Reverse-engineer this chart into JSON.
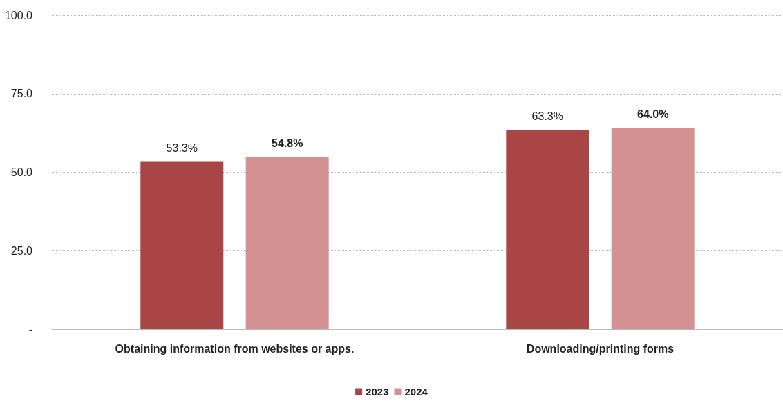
{
  "chart_data": {
    "type": "bar",
    "categories": [
      "Obtaining information from websites or apps.",
      "Downloading/printing forms"
    ],
    "series": [
      {
        "name": "2023",
        "color": "#a84646",
        "values": [
          53.3,
          63.3
        ],
        "value_labels": [
          "53.3%",
          "63.3%"
        ]
      },
      {
        "name": "2024",
        "color": "#d39191",
        "values": [
          54.8,
          64.0
        ],
        "value_labels": [
          "54.8%",
          "64.0%"
        ]
      }
    ],
    "ylim": [
      0,
      100
    ],
    "yticks": [
      {
        "value": 0,
        "label": "-"
      },
      {
        "value": 25,
        "label": "25.0"
      },
      {
        "value": 50,
        "label": "50.0"
      },
      {
        "value": 75,
        "label": "75.0"
      },
      {
        "value": 100,
        "label": "100.0"
      }
    ],
    "grid": "y",
    "legend": "bottom"
  }
}
